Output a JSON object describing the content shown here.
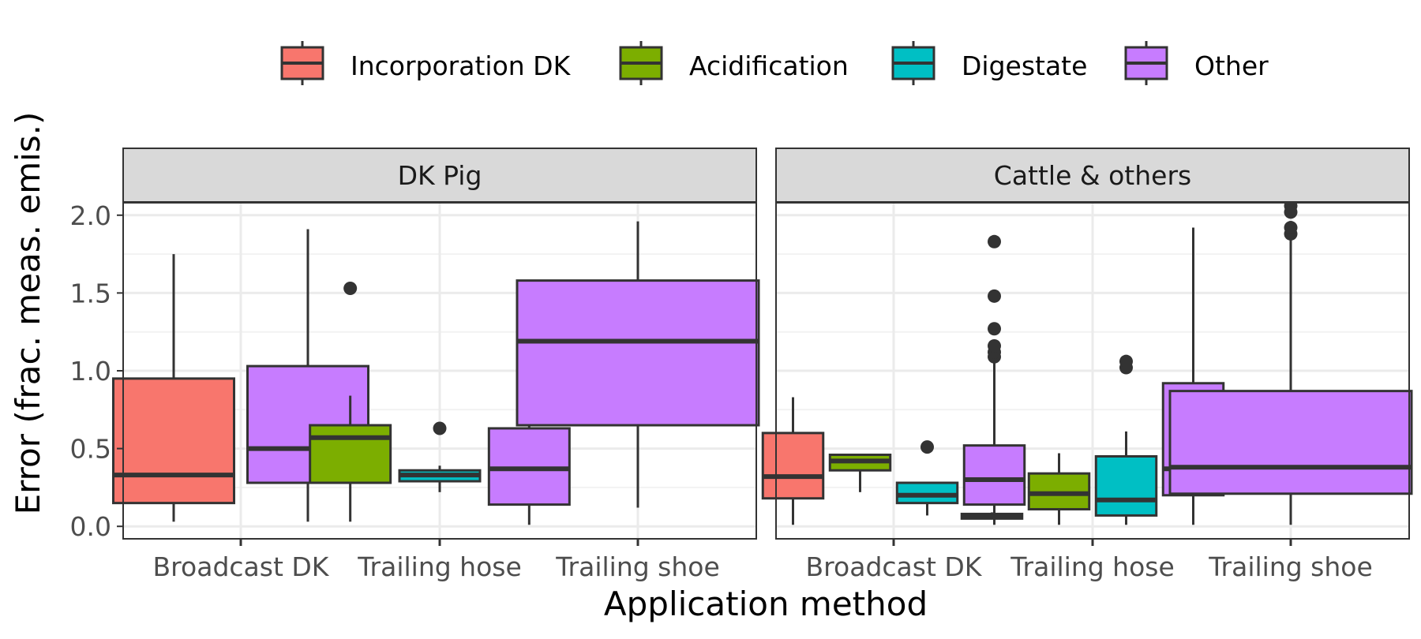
{
  "chart_data": {
    "type": "boxplot",
    "title": "",
    "xlabel": "Application method",
    "ylabel": "Error (frac. meas. emis.)",
    "ylim": [
      -0.08,
      2.08
    ],
    "yticks": [
      "0.0",
      "0.5",
      "1.0",
      "1.5",
      "2.0"
    ],
    "yticks_values": [
      0,
      0.5,
      1.0,
      1.5,
      2.0
    ],
    "grid": true,
    "legend_position": "top",
    "categories": [
      "Broadcast DK",
      "Trailing hose",
      "Trailing shoe"
    ],
    "legend": [
      {
        "name": "Incorporation DK",
        "color": "#F8766D"
      },
      {
        "name": "Acidification",
        "color": "#7CAE00"
      },
      {
        "name": "Digestate",
        "color": "#00BFC4"
      },
      {
        "name": "Other",
        "color": "#C77CFF"
      }
    ],
    "panels": [
      {
        "strip": "DK Pig",
        "groups": [
          {
            "category": "Broadcast DK",
            "n": 2,
            "boxes": [
              {
                "series": 0,
                "slot": 0,
                "min": 0.03,
                "q1": 0.15,
                "median": 0.33,
                "q3": 0.95,
                "max": 1.75,
                "outliers": []
              },
              {
                "series": 3,
                "slot": 1,
                "min": 0.03,
                "q1": 0.28,
                "median": 0.5,
                "q3": 1.03,
                "max": 1.91,
                "outliers": []
              }
            ]
          },
          {
            "category": "Trailing hose",
            "n": 3,
            "boxes": [
              {
                "series": 1,
                "slot": 0,
                "min": 0.03,
                "q1": 0.28,
                "median": 0.57,
                "q3": 0.65,
                "max": 0.84,
                "outliers": [
                  1.53
                ]
              },
              {
                "series": 2,
                "slot": 1,
                "min": 0.22,
                "q1": 0.29,
                "median": 0.33,
                "q3": 0.36,
                "max": 0.39,
                "outliers": [
                  0.63
                ]
              },
              {
                "series": 3,
                "slot": 2,
                "min": 0.01,
                "q1": 0.14,
                "median": 0.37,
                "q3": 0.63,
                "max": 1.15,
                "outliers": []
              }
            ]
          },
          {
            "category": "Trailing shoe",
            "n": 1,
            "boxes": [
              {
                "series": 3,
                "slot": 0,
                "min": 0.12,
                "q1": 0.65,
                "median": 1.19,
                "q3": 1.58,
                "max": 1.96,
                "outliers": []
              }
            ]
          }
        ]
      },
      {
        "strip": "Cattle & others",
        "groups": [
          {
            "category": "Broadcast DK",
            "n": 4,
            "boxes": [
              {
                "series": 0,
                "slot": 0,
                "min": 0.01,
                "q1": 0.18,
                "median": 0.32,
                "q3": 0.6,
                "max": 0.83,
                "outliers": []
              },
              {
                "series": 1,
                "slot": 1,
                "min": 0.22,
                "q1": 0.36,
                "median": 0.42,
                "q3": 0.46,
                "max": 0.46,
                "outliers": []
              },
              {
                "series": 2,
                "slot": 2,
                "min": 0.07,
                "q1": 0.15,
                "median": 0.2,
                "q3": 0.28,
                "max": 0.28,
                "outliers": [
                  0.51
                ]
              },
              {
                "series": 3,
                "slot": 3,
                "min": 0.01,
                "q1": 0.14,
                "median": 0.3,
                "q3": 0.52,
                "max": 1.05,
                "outliers": [
                  1.09,
                  1.12,
                  1.16,
                  1.27,
                  1.48,
                  1.83
                ]
              }
            ]
          },
          {
            "category": "Trailing hose",
            "n": 4,
            "boxes": [
              {
                "series": 0,
                "slot": 0,
                "min": 0.05,
                "q1": 0.05,
                "median": 0.06,
                "q3": 0.08,
                "max": 0.09,
                "outliers": []
              },
              {
                "series": 1,
                "slot": 1,
                "min": 0.01,
                "q1": 0.11,
                "median": 0.21,
                "q3": 0.34,
                "max": 0.47,
                "outliers": []
              },
              {
                "series": 2,
                "slot": 2,
                "min": 0.01,
                "q1": 0.07,
                "median": 0.17,
                "q3": 0.45,
                "max": 0.61,
                "outliers": [
                  1.02,
                  1.06
                ]
              },
              {
                "series": 3,
                "slot": 3,
                "min": 0.01,
                "q1": 0.2,
                "median": 0.37,
                "q3": 0.92,
                "max": 1.92,
                "outliers": []
              }
            ]
          },
          {
            "category": "Trailing shoe",
            "n": 1,
            "boxes": [
              {
                "series": 3,
                "slot": 0,
                "min": 0.01,
                "q1": 0.21,
                "median": 0.38,
                "q3": 0.87,
                "max": 1.87,
                "outliers": [
                  1.88,
                  1.92,
                  2.02,
                  2.06
                ]
              }
            ]
          }
        ]
      }
    ]
  }
}
